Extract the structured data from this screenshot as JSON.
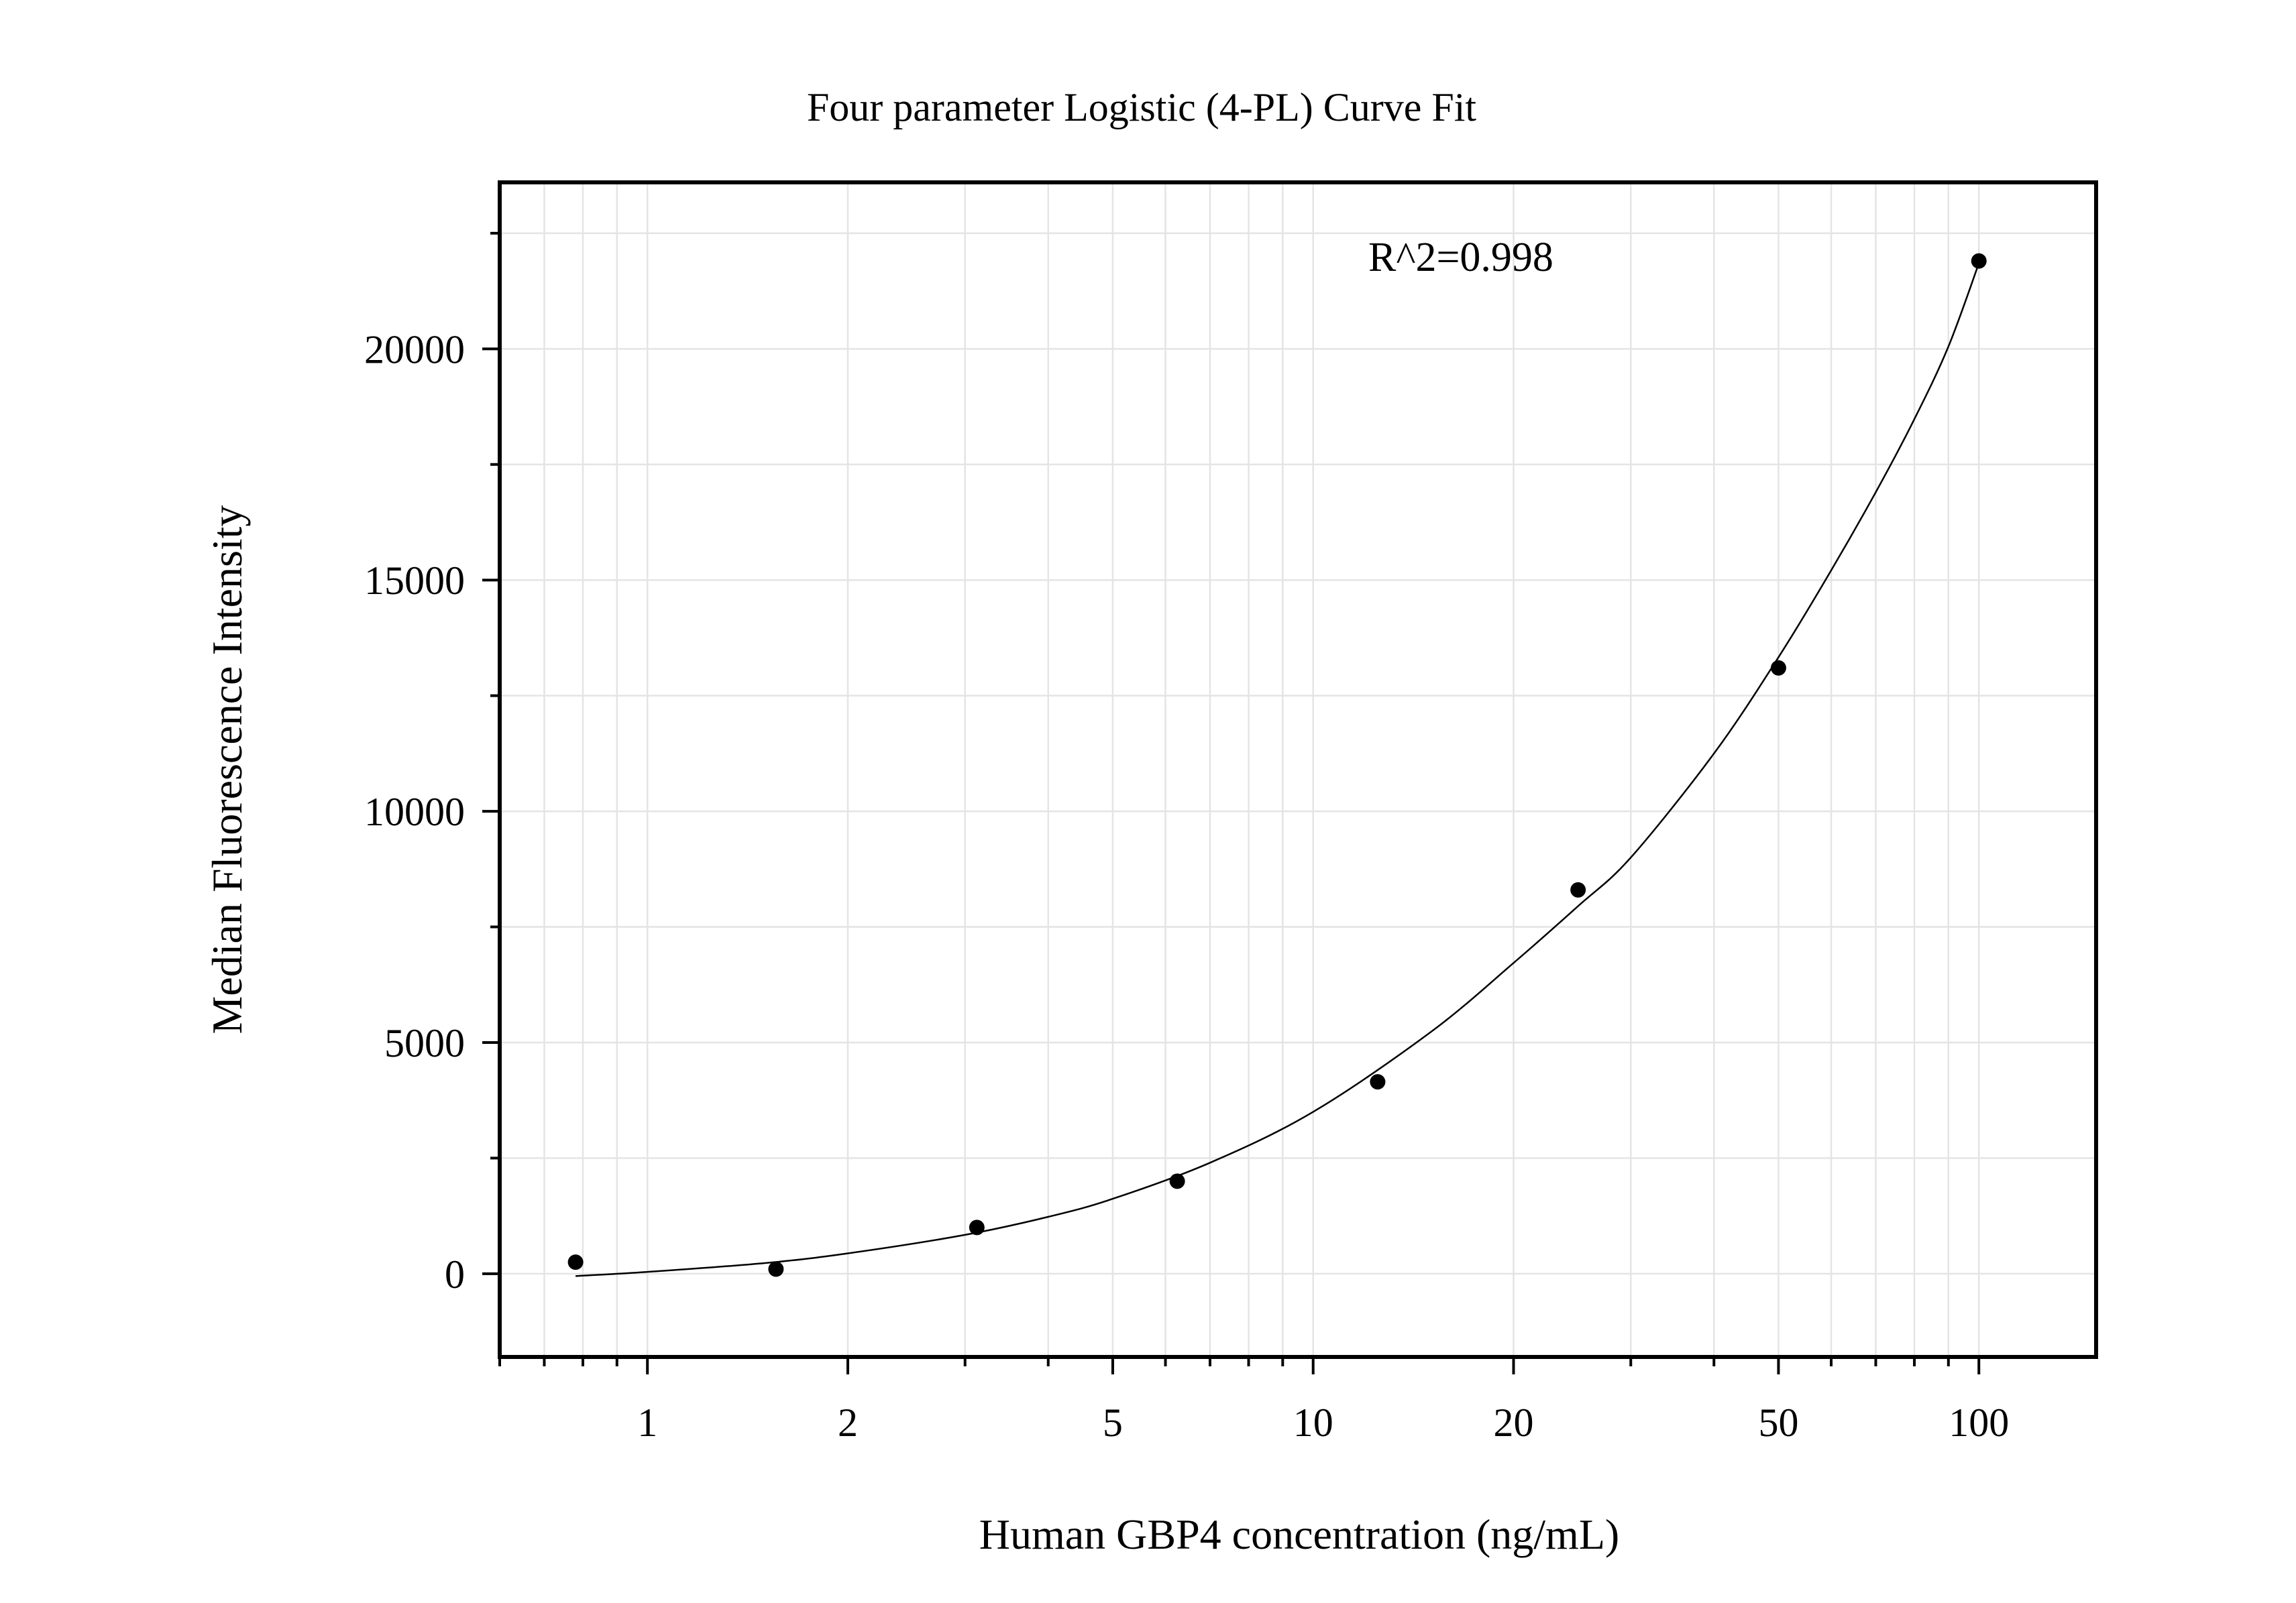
{
  "chart_data": {
    "type": "scatter",
    "title": "Four parameter Logistic (4-PL) Curve Fit",
    "xlabel": "Human GBP4 concentration (ng/mL)",
    "ylabel": "Median Fluorescence Intensity",
    "x_scale": "log",
    "xlim": [
      0.6,
      150
    ],
    "ylim": [
      -1800,
      23600
    ],
    "x_ticks": [
      1,
      2,
      5,
      10,
      20,
      50,
      100
    ],
    "x_tick_labels": [
      "1",
      "2",
      "5",
      "10",
      "20",
      "50",
      "100"
    ],
    "y_ticks": [
      0,
      5000,
      10000,
      15000,
      20000
    ],
    "y_tick_labels": [
      "0",
      "5000",
      "10000",
      "15000",
      "20000"
    ],
    "y_minor_ticks": [
      -2500,
      2500,
      7500,
      12500,
      17500,
      22500
    ],
    "grid": true,
    "annotation": "R^2=0.998",
    "series": [
      {
        "kind": "points",
        "x": [
          0.78,
          1.56,
          3.125,
          6.25,
          12.5,
          25,
          50,
          100
        ],
        "y": [
          250,
          100,
          1000,
          2000,
          4150,
          8300,
          13100,
          21900
        ]
      },
      {
        "kind": "fit-curve",
        "x": [
          0.78,
          1,
          1.5,
          2,
          3,
          4,
          5,
          7,
          10,
          15,
          20,
          25,
          30,
          40,
          50,
          60,
          70,
          80,
          90,
          100
        ],
        "y": [
          -50,
          40,
          230,
          440,
          840,
          1230,
          1620,
          2400,
          3500,
          5220,
          6720,
          7950,
          9000,
          11250,
          13330,
          15210,
          16900,
          18480,
          20050,
          21850
        ]
      }
    ],
    "colors": {
      "points": "#000000",
      "curve": "#000000",
      "grid": "#e4e4e4"
    }
  }
}
